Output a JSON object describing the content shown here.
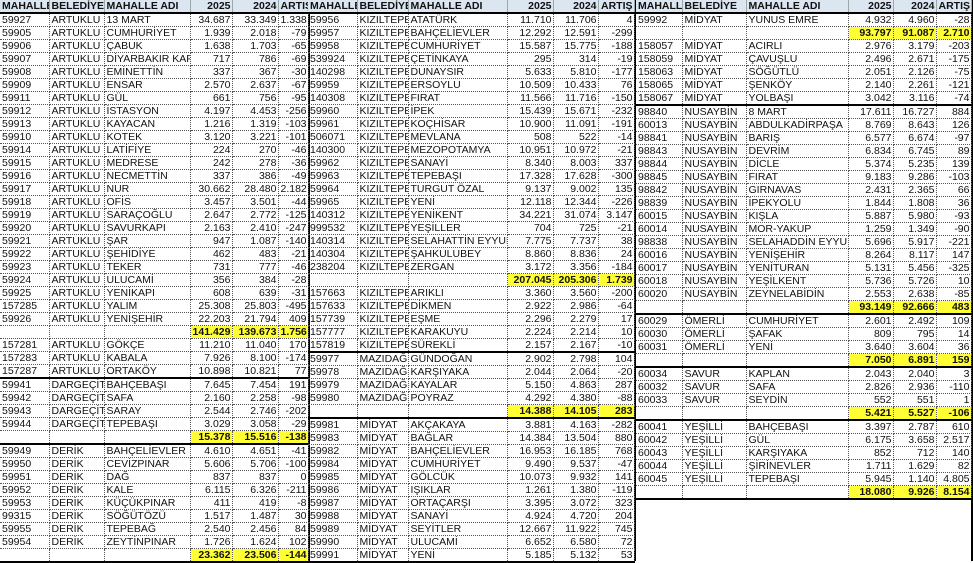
{
  "headers": [
    "MAHALLE",
    "BELEDİYE",
    "MAHALLE ADI",
    "2025",
    "2024",
    "ARTIŞ"
  ],
  "highlight_color": "#ffff33",
  "header_color": "#dce6f1",
  "columns": [
    {
      "groups": [
        [
          [
            "59927",
            "ARTUKLU",
            "13 MART",
            "34.687",
            "33.349",
            "1.338"
          ],
          [
            "59905",
            "ARTUKLU",
            "CUMHURİYET",
            "1.939",
            "2.018",
            "-79"
          ],
          [
            "59906",
            "ARTUKLU",
            "ÇABUK",
            "1.638",
            "1.703",
            "-65"
          ],
          [
            "59907",
            "ARTUKLU",
            "DİYARBAKIR KAPI",
            "717",
            "786",
            "-69"
          ],
          [
            "59908",
            "ARTUKLU",
            "EMİNETTİN",
            "337",
            "367",
            "-30"
          ],
          [
            "59909",
            "ARTUKLU",
            "ENSAR",
            "2.570",
            "2.637",
            "-67"
          ],
          [
            "59911",
            "ARTUKLU",
            "GÜL",
            "661",
            "756",
            "-95"
          ],
          [
            "59912",
            "ARTUKLU",
            "İSTASYON",
            "4.197",
            "4.453",
            "-256"
          ],
          [
            "59913",
            "ARTUKLU",
            "KAYACAN",
            "1.216",
            "1.319",
            "-103"
          ],
          [
            "59910",
            "ARTUKLU",
            "KOTEK",
            "3.120",
            "3.221",
            "-101"
          ],
          [
            "59914",
            "ARTUKLU",
            "LATİFİYE",
            "224",
            "270",
            "-46"
          ],
          [
            "59915",
            "ARTUKLU",
            "MEDRESE",
            "242",
            "278",
            "-36"
          ],
          [
            "59916",
            "ARTUKLU",
            "NECMETTİN",
            "337",
            "386",
            "-49"
          ],
          [
            "59917",
            "ARTUKLU",
            "NUR",
            "30.662",
            "28.480",
            "2.182"
          ],
          [
            "59918",
            "ARTUKLU",
            "OFİS",
            "3.457",
            "3.501",
            "-44"
          ],
          [
            "59919",
            "ARTUKLU",
            "SARAÇOĞLU",
            "2.647",
            "2.772",
            "-125"
          ],
          [
            "59920",
            "ARTUKLU",
            "SAVURKAPI",
            "2.163",
            "2.410",
            "-247"
          ],
          [
            "59921",
            "ARTUKLU",
            "ŞAR",
            "947",
            "1.087",
            "-140"
          ],
          [
            "59922",
            "ARTUKLU",
            "ŞEHİDİYE",
            "462",
            "483",
            "-21"
          ],
          [
            "59923",
            "ARTUKLU",
            "TEKER",
            "731",
            "777",
            "-46"
          ],
          [
            "59924",
            "ARTUKLU",
            "ULUCAMİ",
            "356",
            "384",
            "-28"
          ],
          [
            "59925",
            "ARTUKLU",
            "YENİKAPI",
            "608",
            "639",
            "-31"
          ],
          [
            "157285",
            "ARTUKLU",
            "YALIM",
            "25.308",
            "25.803",
            "-495"
          ],
          [
            "59926",
            "ARTUKLU",
            "YENİŞEHİR",
            "22.203",
            "21.794",
            "409"
          ],
          [
            "",
            "",
            "",
            "141.429",
            "139.673",
            "1.756"
          ],
          [
            "157281",
            "ARTUKLU",
            "GÖKÇE",
            "11.210",
            "11.040",
            "170"
          ],
          [
            "157283",
            "ARTUKLU",
            "KABALA",
            "7.926",
            "8.100",
            "-174"
          ],
          [
            "157287",
            "ARTUKLU",
            "ORTAKÖY",
            "10.898",
            "10.821",
            "77"
          ]
        ],
        [
          [
            "59941",
            "DARGEÇİT",
            "BAHÇEBAŞI",
            "7.645",
            "7.454",
            "191"
          ],
          [
            "59942",
            "DARGEÇİT",
            "SAFA",
            "2.160",
            "2.258",
            "-98"
          ],
          [
            "59943",
            "DARGEÇİT",
            "SARAY",
            "2.544",
            "2.746",
            "-202"
          ],
          [
            "59944",
            "DARGEÇİT",
            "TEPEBAŞI",
            "3.029",
            "3.058",
            "-29"
          ],
          [
            "",
            "",
            "",
            "15.378",
            "15.516",
            "-138"
          ]
        ],
        [
          [
            "59949",
            "DERİK",
            "BAHÇELİEVLER",
            "4.610",
            "4.651",
            "-41"
          ],
          [
            "59950",
            "DERİK",
            "CEVİZPINAR",
            "5.606",
            "5.706",
            "-100"
          ],
          [
            "59951",
            "DERİK",
            "DAĞ",
            "837",
            "837",
            "0"
          ],
          [
            "59952",
            "DERİK",
            "KALE",
            "6.115",
            "6.326",
            "-211"
          ],
          [
            "59953",
            "DERİK",
            "KÜÇÜKPINAR",
            "411",
            "419",
            "-8"
          ],
          [
            "99315",
            "DERİK",
            "SÖĞÜTÖZÜ",
            "1.517",
            "1.487",
            "30"
          ],
          [
            "59955",
            "DERİK",
            "TEPEBAĞ",
            "2.540",
            "2.456",
            "84"
          ],
          [
            "59954",
            "DERİK",
            "ZEYTİNPINAR",
            "1.726",
            "1.624",
            "102"
          ],
          [
            "",
            "",
            "",
            "23.362",
            "23.506",
            "-144"
          ]
        ]
      ]
    },
    {
      "groups": [
        [
          [
            "59956",
            "KIZILTEPE",
            "ATATÜRK",
            "11.710",
            "11.706",
            "4"
          ],
          [
            "59957",
            "KIZILTEPE",
            "BAHÇELİEVLER",
            "12.292",
            "12.591",
            "-299"
          ],
          [
            "59958",
            "KIZILTEPE",
            "CUMHURİYET",
            "15.587",
            "15.775",
            "-188"
          ],
          [
            "539924",
            "KIZILTEPE",
            "ÇETİNKAYA",
            "295",
            "314",
            "-19"
          ],
          [
            "140298",
            "KIZILTEPE",
            "DUNAYSIR",
            "5.633",
            "5.810",
            "-177"
          ],
          [
            "59959",
            "KIZILTEPE",
            "ERSOYLU",
            "10.509",
            "10.433",
            "76"
          ],
          [
            "140308",
            "KIZILTEPE",
            "FIRAT",
            "11.566",
            "11.716",
            "-150"
          ],
          [
            "59960",
            "KIZILTEPE",
            "İPEK",
            "15.439",
            "15.671",
            "-232"
          ],
          [
            "59961",
            "KIZILTEPE",
            "KOÇHİSAR",
            "10.900",
            "11.091",
            "-191"
          ],
          [
            "506071",
            "KIZILTEPE",
            "MEVLANA",
            "508",
            "522",
            "-14"
          ],
          [
            "140300",
            "KIZILTEPE",
            "MEZOPOTAMYA",
            "10.951",
            "10.972",
            "-21"
          ],
          [
            "59962",
            "KIZILTEPE",
            "SANAYİ",
            "8.340",
            "8.003",
            "337"
          ],
          [
            "59963",
            "KIZILTEPE",
            "TEPEBAŞI",
            "17.328",
            "17.628",
            "-300"
          ],
          [
            "59964",
            "KIZILTEPE",
            "TURGUT ÖZAL",
            "9.137",
            "9.002",
            "135"
          ],
          [
            "59965",
            "KIZILTEPE",
            "YENİ",
            "12.118",
            "12.344",
            "-226"
          ],
          [
            "140312",
            "KIZILTEPE",
            "YENİKENT",
            "34.221",
            "31.074",
            "3.147"
          ],
          [
            "999532",
            "KIZILTEPE",
            "YEŞİLLER",
            "704",
            "725",
            "-21"
          ],
          [
            "140314",
            "KIZILTEPE",
            "SELAHATTİN EYYUBİ",
            "7.775",
            "7.737",
            "38"
          ],
          [
            "140304",
            "KIZILTEPE",
            "ŞAHKULUBEY",
            "8.860",
            "8.836",
            "24"
          ],
          [
            "238204",
            "KIZILTEPE",
            "ZERGAN",
            "3.172",
            "3.356",
            "-184"
          ],
          [
            "",
            "",
            "",
            "207.045",
            "205.306",
            "1.739"
          ],
          [
            "157663",
            "KIZILTEPE",
            "ARIKLI",
            "3.360",
            "3.560",
            "-200"
          ],
          [
            "157633",
            "KIZILTEPE",
            "DİKMEN",
            "2.922",
            "2.986",
            "-64"
          ],
          [
            "157739",
            "KIZILTEPE",
            "EŞME",
            "2.296",
            "2.279",
            "17"
          ],
          [
            "157777",
            "KIZILTEPE",
            "KARAKUYU",
            "2.224",
            "2.214",
            "10"
          ],
          [
            "157819",
            "KIZILTEPE",
            "SÜREKLİ",
            "2.157",
            "2.167",
            "-10"
          ]
        ],
        [
          [
            "59977",
            "MAZIDAĞI",
            "GÜNDOĞAN",
            "2.902",
            "2.798",
            "104"
          ],
          [
            "59978",
            "MAZIDAĞI",
            "KARŞIYAKA",
            "2.044",
            "2.064",
            "-20"
          ],
          [
            "59979",
            "MAZIDAĞI",
            "KAYALAR",
            "5.150",
            "4.863",
            "287"
          ],
          [
            "59980",
            "MAZIDAĞI",
            "POYRAZ",
            "4.292",
            "4.380",
            "-88"
          ],
          [
            "",
            "",
            "",
            "14.388",
            "14.105",
            "283"
          ]
        ],
        [
          [
            "59981",
            "MİDYAT",
            "AKÇAKAYA",
            "3.881",
            "4.163",
            "-282"
          ],
          [
            "59983",
            "MİDYAT",
            "BAĞLAR",
            "14.384",
            "13.504",
            "880"
          ],
          [
            "59982",
            "MİDYAT",
            "BAHÇELİEVLER",
            "16.953",
            "16.185",
            "768"
          ],
          [
            "59984",
            "MİDYAT",
            "CUMHURİYET",
            "9.490",
            "9.537",
            "-47"
          ],
          [
            "59985",
            "MİDYAT",
            "GÖLCÜK",
            "10.073",
            "9.932",
            "141"
          ],
          [
            "59986",
            "MİDYAT",
            "IŞIKLAR",
            "1.261",
            "1.380",
            "-119"
          ],
          [
            "59987",
            "MİDYAT",
            "ORTAÇARŞI",
            "3.395",
            "3.072",
            "323"
          ],
          [
            "59988",
            "MİDYAT",
            "SANAYİ",
            "4.924",
            "4.720",
            "204"
          ],
          [
            "59989",
            "MİDYAT",
            "SEYİTLER",
            "12.667",
            "11.922",
            "745"
          ],
          [
            "59990",
            "MİDYAT",
            "ULUCAMİ",
            "6.652",
            "6.580",
            "72"
          ],
          [
            "59991",
            "MİDYAT",
            "YENİ",
            "5.185",
            "5.132",
            "53"
          ]
        ]
      ]
    },
    {
      "groups": [
        [
          [
            "59992",
            "MİDYAT",
            "YUNUS EMRE",
            "4.932",
            "4.960",
            "-28"
          ],
          [
            "",
            "",
            "",
            "93.797",
            "91.087",
            "2.710"
          ],
          [
            "158057",
            "MİDYAT",
            "ACIRLI",
            "2.976",
            "3.179",
            "-203"
          ],
          [
            "158059",
            "MİDYAT",
            "ÇAVUŞLU",
            "2.496",
            "2.671",
            "-175"
          ],
          [
            "158063",
            "MİDYAT",
            "SÖĞÜTLÜ",
            "2.051",
            "2.126",
            "-75"
          ],
          [
            "158065",
            "MİDYAT",
            "ŞENKÖY",
            "2.140",
            "2.261",
            "-121"
          ],
          [
            "158067",
            "MİDYAT",
            "YOLBAŞI",
            "3.042",
            "3.116",
            "-74"
          ]
        ],
        [
          [
            "98840",
            "NUSAYBİN",
            "8 MART",
            "17.611",
            "16.727",
            "884"
          ],
          [
            "60013",
            "NUSAYBİN",
            "ABDULKADİRPAŞA",
            "8.769",
            "8.643",
            "126"
          ],
          [
            "98841",
            "NUSAYBİN",
            "BARIŞ",
            "6.577",
            "6.674",
            "-97"
          ],
          [
            "98843",
            "NUSAYBİN",
            "DEVRİM",
            "6.834",
            "6.745",
            "89"
          ],
          [
            "98844",
            "NUSAYBİN",
            "DİCLE",
            "5.374",
            "5.235",
            "139"
          ],
          [
            "98845",
            "NUSAYBİN",
            "FIRAT",
            "9.183",
            "9.286",
            "-103"
          ],
          [
            "98842",
            "NUSAYBİN",
            "GIRNAVAS",
            "2.431",
            "2.365",
            "66"
          ],
          [
            "98839",
            "NUSAYBİN",
            "İPEKYOLU",
            "1.844",
            "1.808",
            "36"
          ],
          [
            "60015",
            "NUSAYBİN",
            "KIŞLA",
            "5.887",
            "5.980",
            "-93"
          ],
          [
            "60014",
            "NUSAYBİN",
            "MOR-YAKUP",
            "1.259",
            "1.349",
            "-90"
          ],
          [
            "98838",
            "NUSAYBİN",
            "SELAHADDİN EYYUBİ",
            "5.696",
            "5.917",
            "-221"
          ],
          [
            "60016",
            "NUSAYBİN",
            "YENİŞEHİR",
            "8.264",
            "8.117",
            "147"
          ],
          [
            "60017",
            "NUSAYBİN",
            "YENİTURAN",
            "5.131",
            "5.456",
            "-325"
          ],
          [
            "60018",
            "NUSAYBİN",
            "YEŞİLKENT",
            "5.736",
            "5.726",
            "10"
          ],
          [
            "60020",
            "NUSAYBİN",
            "ZEYNELABİDİN",
            "2.553",
            "2.638",
            "-85"
          ],
          [
            "",
            "",
            "",
            "93.149",
            "92.666",
            "483"
          ]
        ],
        [
          [
            "60029",
            "ÖMERLİ",
            "CUMHURİYET",
            "2.601",
            "2.492",
            "109"
          ],
          [
            "60030",
            "ÖMERLİ",
            "ŞAFAK",
            "809",
            "795",
            "14"
          ],
          [
            "60031",
            "ÖMERLİ",
            "YENİ",
            "3.640",
            "3.604",
            "36"
          ],
          [
            "",
            "",
            "",
            "7.050",
            "6.891",
            "159"
          ]
        ],
        [
          [
            "60034",
            "SAVUR",
            "KAPLAN",
            "2.043",
            "2.040",
            "3"
          ],
          [
            "60032",
            "SAVUR",
            "SAFA",
            "2.826",
            "2.936",
            "-110"
          ],
          [
            "60033",
            "SAVUR",
            "SEYDİN",
            "552",
            "551",
            "1"
          ],
          [
            "",
            "",
            "",
            "5.421",
            "5.527",
            "-106"
          ]
        ],
        [
          [
            "60041",
            "YEŞİLLİ",
            "BAHÇEBAŞI",
            "3.397",
            "2.787",
            "610"
          ],
          [
            "60042",
            "YEŞİLLİ",
            "GÜL",
            "6.175",
            "3.658",
            "2.517"
          ],
          [
            "60043",
            "YEŞİLLİ",
            "KARŞIYAKA",
            "852",
            "712",
            "140"
          ],
          [
            "60044",
            "YEŞİLLİ",
            "ŞİRİNEVLER",
            "1.711",
            "1.629",
            "82"
          ],
          [
            "60045",
            "YEŞİLLİ",
            "TEPEBAŞI",
            "5.945",
            "1.140",
            "4.805"
          ],
          [
            "",
            "",
            "",
            "18.080",
            "9.926",
            "8.154"
          ]
        ]
      ]
    }
  ]
}
